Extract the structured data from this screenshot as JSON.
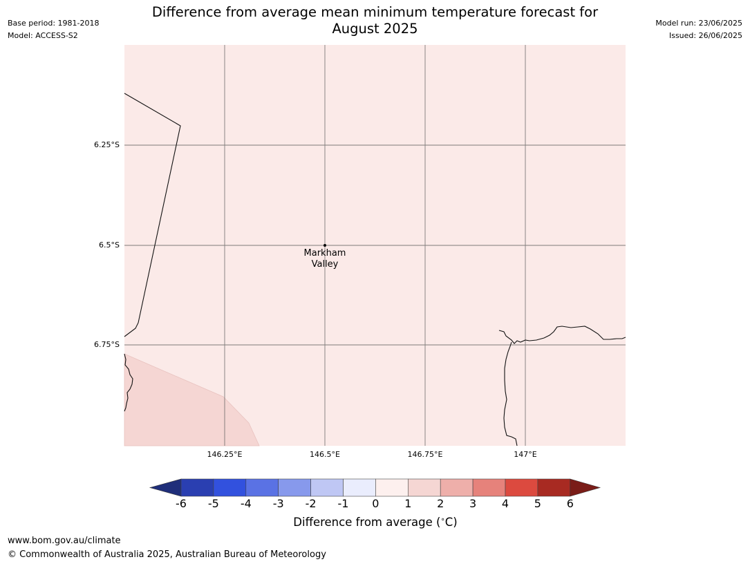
{
  "header": {
    "title": "Difference from average mean minimum temperature forecast for August 2025",
    "title_line1": "Difference from average mean minimum temperature forecast for",
    "title_line2": "August 2025",
    "base_period": "Base period: 1981-2018",
    "model": "Model: ACCESS-S2",
    "model_run": "Model run: 23/06/2025",
    "issued": "Issued: 26/06/2025"
  },
  "map": {
    "lat_ticks": [
      "6.25°S",
      "6.5°S",
      "6.75°S"
    ],
    "lon_ticks": [
      "146.25°E",
      "146.5°E",
      "146.75°E",
      "147°E"
    ],
    "place": {
      "line1": "Markham",
      "line2": "Valley"
    },
    "region_colors": {
      "main": "#fbeae8",
      "southwest": "#f5d6d3"
    }
  },
  "colorbar": {
    "label": "Difference from average (°C)",
    "label_prefix": "Difference from average (",
    "label_suffix": "C)",
    "ticks": [
      "-6",
      "-5",
      "-4",
      "-3",
      "-2",
      "-1",
      "0",
      "1",
      "2",
      "3",
      "4",
      "5",
      "6"
    ],
    "under_color": "#1f2e7a",
    "over_color": "#7a1d18",
    "bin_colors": [
      "#2a3fb1",
      "#3251de",
      "#5a72e4",
      "#8799ec",
      "#bfc7f4",
      "#eaedfd",
      "#fdf0ee",
      "#f5d6d3",
      "#eeafaa",
      "#e6827b",
      "#dc4a3f",
      "#a82a22"
    ]
  },
  "footer": {
    "url": "www.bom.gov.au/climate",
    "copyright": "© Commonwealth of Australia 2025, Australian Bureau of Meteorology"
  }
}
